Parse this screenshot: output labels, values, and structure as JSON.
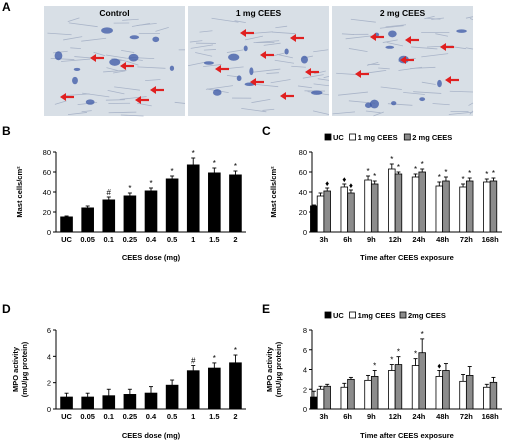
{
  "panels": {
    "A": {
      "letter": "A",
      "images": [
        {
          "caption": "Control",
          "arrows": 5
        },
        {
          "caption": "1 mg CEES",
          "arrows": 7
        },
        {
          "caption": "2 mg CEES",
          "arrows": 6
        }
      ],
      "colors": {
        "tissue_bg": "#d8dfe6",
        "stain": "#3b57a6",
        "arrow": "#e02020"
      }
    }
  },
  "chart_data": [
    {
      "panel": "B",
      "type": "bar",
      "ylabel": "Mast cells/cm²",
      "xlabel": "CEES dose (mg)",
      "ylim": [
        0,
        80
      ],
      "yticks": [
        0,
        20,
        40,
        60,
        80
      ],
      "categories": [
        "UC",
        "0.05",
        "0.1",
        "0.25",
        "0.4",
        "0.5",
        "1",
        "1.5",
        "2"
      ],
      "values": [
        15,
        24,
        32,
        36,
        41,
        53,
        67,
        59,
        57
      ],
      "errors": [
        1,
        2,
        3,
        3,
        3,
        3,
        7,
        5,
        4
      ],
      "marks": [
        "",
        "",
        "#",
        "*",
        "*",
        "*",
        "*",
        "*",
        "*"
      ],
      "bar_color": "#000000"
    },
    {
      "panel": "C",
      "type": "bar",
      "ylabel": "Mast cells/cm²",
      "xlabel": "Time after CEES exposure",
      "ylim": [
        0,
        80
      ],
      "yticks": [
        0,
        20,
        40,
        60,
        80
      ],
      "categories": [
        "3h",
        "6h",
        "9h",
        "12h",
        "24h",
        "48h",
        "72h",
        "168h"
      ],
      "legend": [
        "UC",
        "1 mg CEES",
        "2 mg CEES"
      ],
      "uc_value": 26,
      "uc_error": 1,
      "series": [
        {
          "name": "1 mg CEES",
          "values": [
            36,
            45,
            52,
            63,
            55,
            46,
            45,
            50
          ],
          "errors": [
            3,
            3,
            4,
            5,
            3,
            4,
            3,
            3
          ],
          "marks": [
            "",
            "♦",
            "*",
            "*",
            "*",
            "*",
            "*",
            "*"
          ],
          "color": "#ffffff"
        },
        {
          "name": "2 mg CEES",
          "values": [
            41,
            39,
            48,
            58,
            60,
            51,
            51,
            51
          ],
          "errors": [
            3,
            3,
            3,
            2,
            3,
            4,
            3,
            3
          ],
          "marks": [
            "♦",
            "♦",
            "*",
            "*",
            "*",
            "*",
            "*",
            "*"
          ],
          "color": "#8c8c8c"
        }
      ]
    },
    {
      "panel": "D",
      "type": "bar",
      "ylabel": "MPO activity\n(mU/µg protein)",
      "xlabel": "CEES dose (mg)",
      "ylim": [
        0,
        6
      ],
      "yticks": [
        0,
        2,
        4,
        6
      ],
      "categories": [
        "UC",
        "0.05",
        "0.1",
        "0.25",
        "0.4",
        "0.5",
        "1",
        "1.5",
        "2"
      ],
      "values": [
        0.9,
        0.9,
        1.0,
        1.1,
        1.2,
        1.8,
        2.9,
        3.1,
        3.5
      ],
      "errors": [
        0.3,
        0.3,
        0.5,
        0.4,
        0.5,
        0.4,
        0.4,
        0.4,
        0.6
      ],
      "marks": [
        "",
        "",
        "",
        "",
        "",
        "",
        "#",
        "*",
        "*"
      ],
      "bar_color": "#000000"
    },
    {
      "panel": "E",
      "type": "bar",
      "ylabel": "MPO activity\n(mU/µg protein)",
      "xlabel": "Time after CEES exposure",
      "ylim": [
        0,
        8
      ],
      "yticks": [
        0,
        2,
        4,
        6,
        8
      ],
      "categories": [
        "3h",
        "6h",
        "9h",
        "12h",
        "24h",
        "48h",
        "72h",
        "168h"
      ],
      "legend": [
        "UC",
        "1mg CEES",
        "2mg CEES"
      ],
      "uc_value": 1.2,
      "uc_error": 0.6,
      "series": [
        {
          "name": "1mg CEES",
          "values": [
            2.0,
            2.2,
            2.9,
            3.9,
            4.4,
            3.3,
            2.8,
            2.2
          ],
          "errors": [
            0.3,
            0.4,
            0.5,
            0.6,
            0.7,
            0.6,
            0.7,
            0.3
          ],
          "marks": [
            "",
            "",
            "",
            "*",
            "*",
            "♦",
            "",
            ""
          ],
          "color": "#ffffff"
        },
        {
          "name": "2mg CEES",
          "values": [
            2.3,
            3.0,
            3.3,
            4.5,
            5.7,
            3.9,
            3.4,
            2.7
          ],
          "errors": [
            0.2,
            0.2,
            0.6,
            0.8,
            1.4,
            0.7,
            0.9,
            0.5
          ],
          "marks": [
            "",
            "",
            "*",
            "*",
            "*",
            "",
            "",
            ""
          ],
          "color": "#8c8c8c"
        }
      ]
    }
  ]
}
